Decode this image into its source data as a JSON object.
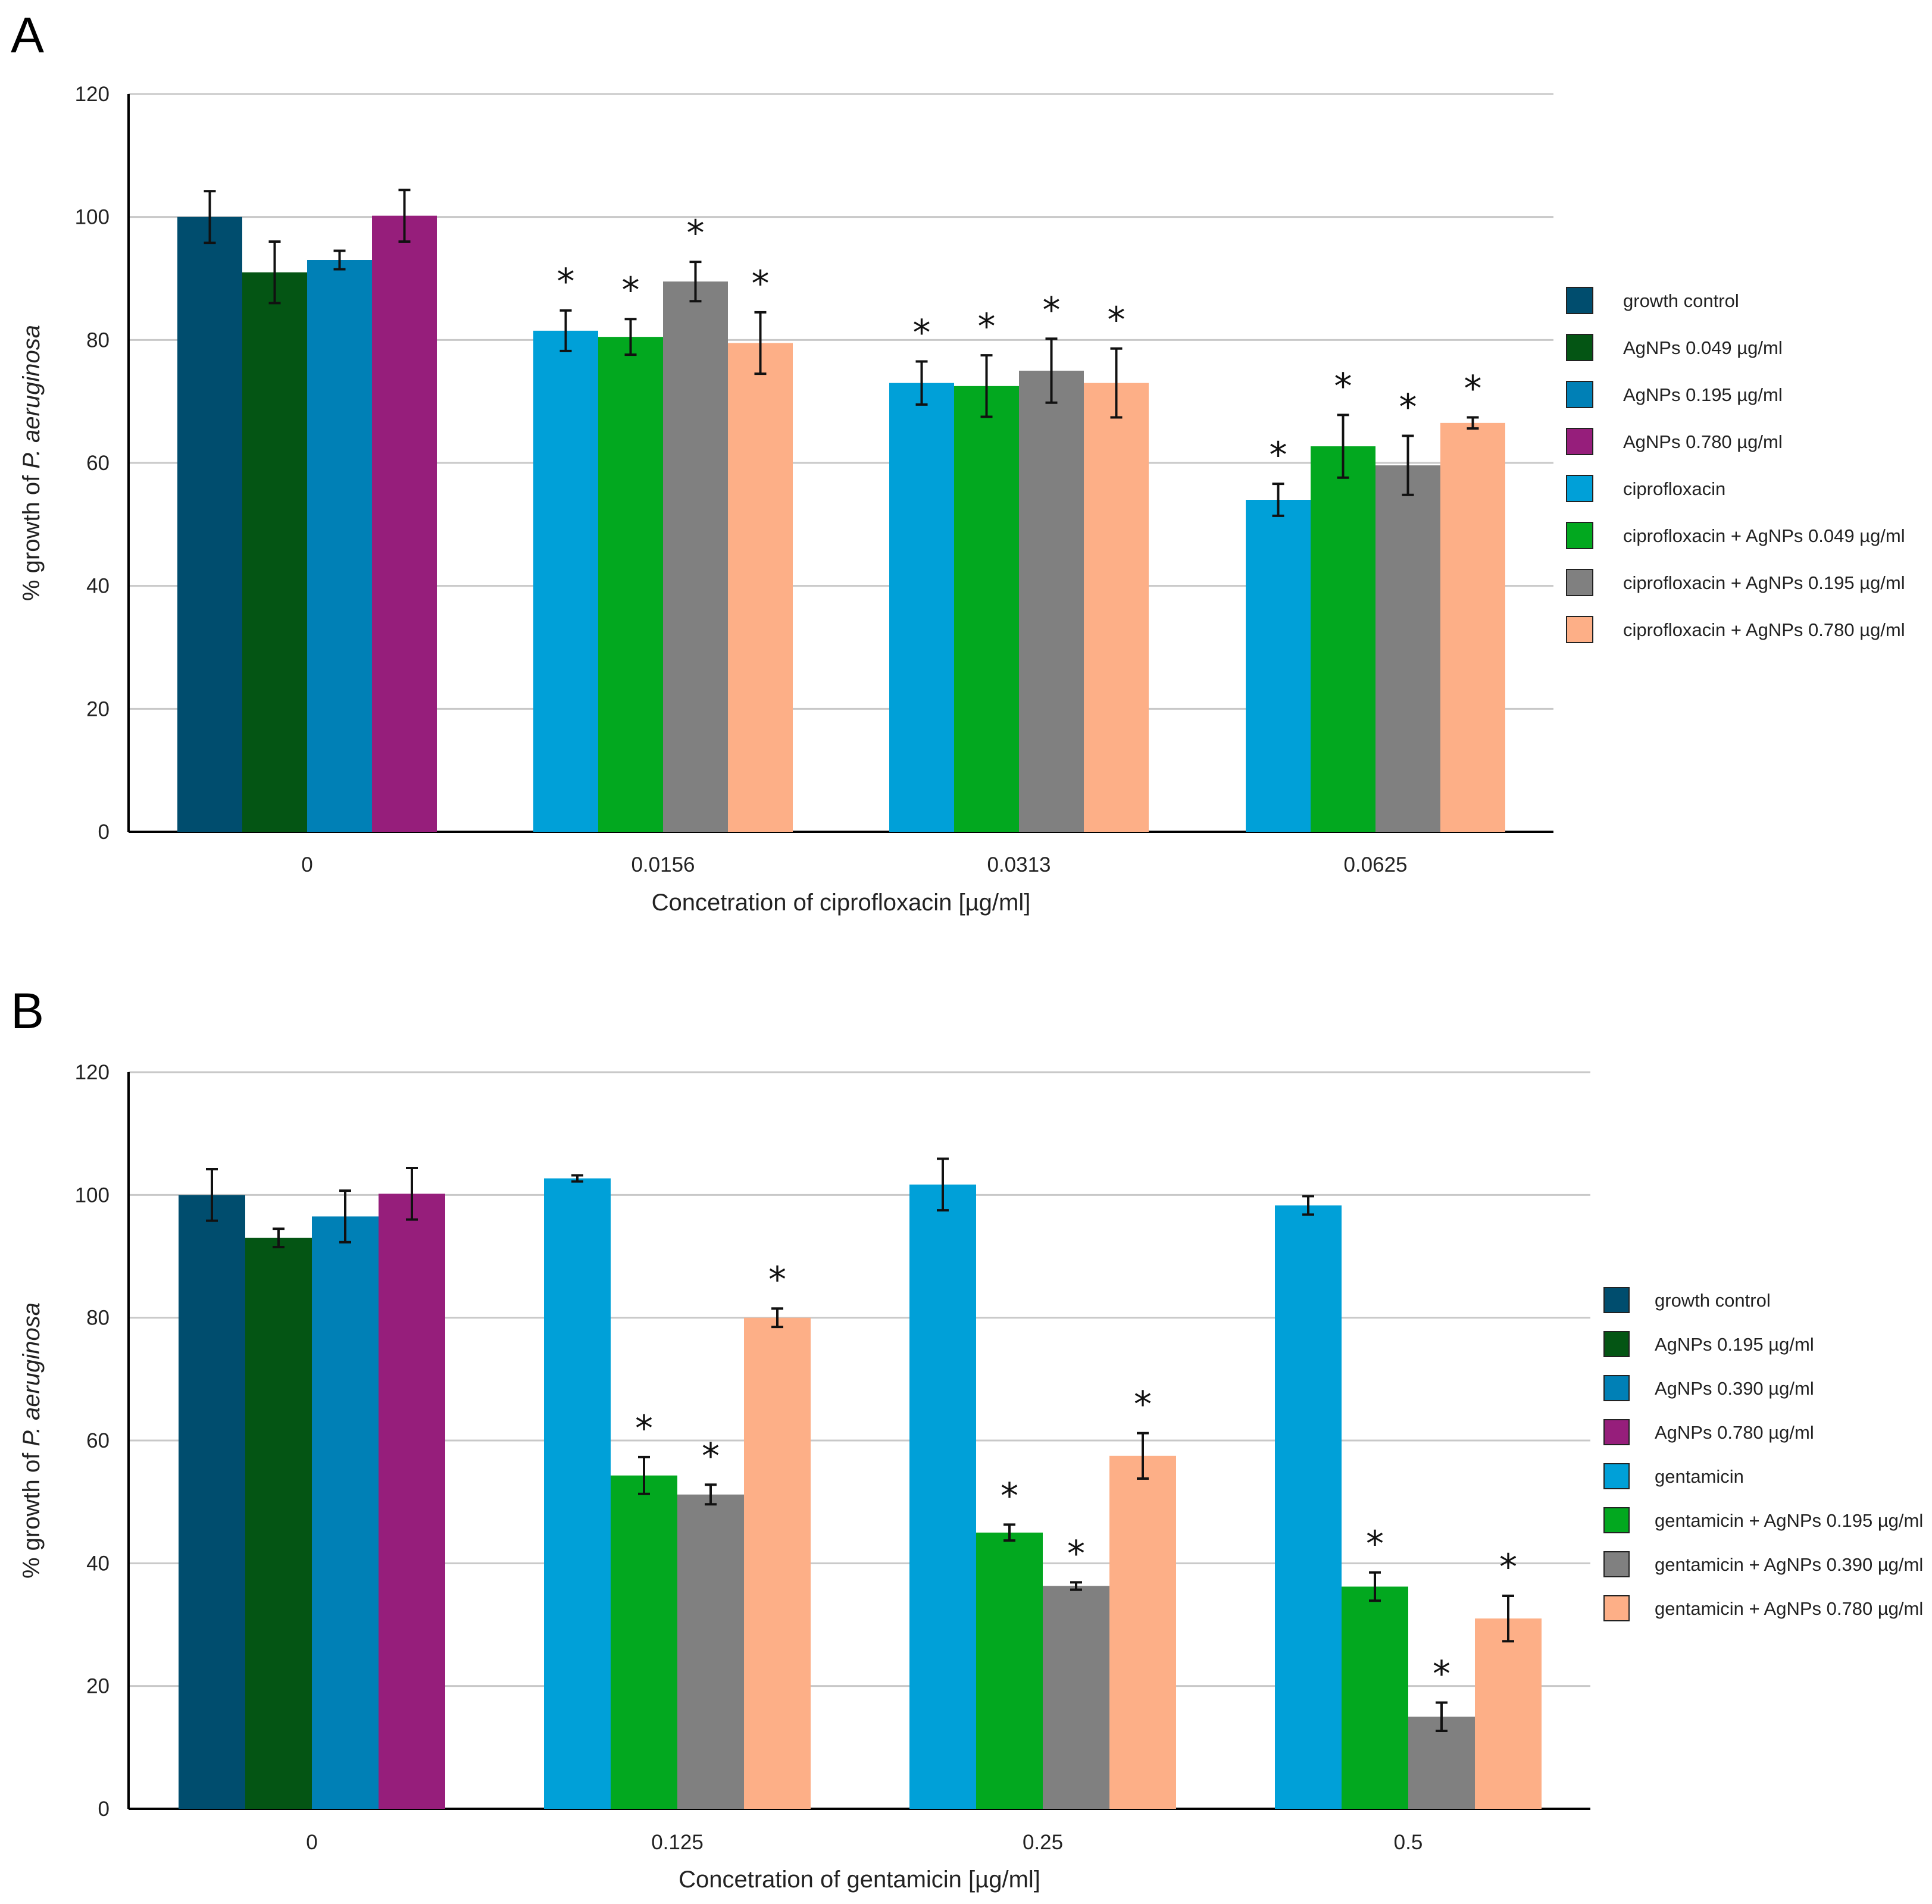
{
  "chart_data": [
    {
      "type": "bar",
      "panel": "A",
      "categories": [
        "0",
        "0.0156",
        "0.0313",
        "0.0625"
      ],
      "xlabel": "Concetration of ciprofloxacin [µg/ml]",
      "ylabel_prefix": "% growth of ",
      "ylabel_italic": "P. aeruginosa",
      "ylim": [
        0,
        120
      ],
      "yticks": [
        "0",
        "20",
        "40",
        "60",
        "80",
        "100",
        "120"
      ],
      "grid": true,
      "legend_position": "right",
      "star_symbol": "*",
      "groups": [
        {
          "category": "0",
          "bars": [
            {
              "series": 0,
              "value": 100,
              "error": 4.2,
              "star": false
            },
            {
              "series": 1,
              "value": 91,
              "error": 5,
              "star": false
            },
            {
              "series": 2,
              "value": 93,
              "error": 1.5,
              "star": false
            },
            {
              "series": 3,
              "value": 100.2,
              "error": 4.2,
              "star": false
            }
          ]
        },
        {
          "category": "0.0156",
          "bars": [
            {
              "series": 4,
              "value": 81.5,
              "error": 3.3,
              "star": true
            },
            {
              "series": 5,
              "value": 80.5,
              "error": 2.9,
              "star": true
            },
            {
              "series": 6,
              "value": 89.5,
              "error": 3.2,
              "star": true
            },
            {
              "series": 7,
              "value": 79.5,
              "error": 5,
              "star": true
            }
          ]
        },
        {
          "category": "0.0313",
          "bars": [
            {
              "series": 4,
              "value": 73,
              "error": 3.5,
              "star": true
            },
            {
              "series": 5,
              "value": 72.5,
              "error": 5,
              "star": true
            },
            {
              "series": 6,
              "value": 75,
              "error": 5.2,
              "star": true
            },
            {
              "series": 7,
              "value": 73,
              "error": 5.6,
              "star": true
            }
          ]
        },
        {
          "category": "0.0625",
          "bars": [
            {
              "series": 4,
              "value": 54,
              "error": 2.6,
              "star": true
            },
            {
              "series": 5,
              "value": 62.7,
              "error": 5.1,
              "star": true
            },
            {
              "series": 6,
              "value": 59.6,
              "error": 4.8,
              "star": true
            },
            {
              "series": 7,
              "value": 66.5,
              "error": 0.9,
              "star": true
            }
          ]
        }
      ],
      "series": [
        {
          "name": "growth control",
          "color": "#004d6e"
        },
        {
          "name": "AgNPs 0.049 µg/ml",
          "color": "#045514"
        },
        {
          "name": "AgNPs 0.195 µg/ml",
          "color": "#0080b6"
        },
        {
          "name": "AgNPs 0.780 µg/ml",
          "color": "#961e7b"
        },
        {
          "name": "ciprofloxacin",
          "color": "#00a0d8"
        },
        {
          "name": "ciprofloxacin + AgNPs 0.049 µg/ml",
          "color": "#02a81f"
        },
        {
          "name": "ciprofloxacin + AgNPs 0.195 µg/ml",
          "color": "#808080"
        },
        {
          "name": "ciprofloxacin + AgNPs 0.780 µg/ml",
          "color": "#fdaf87"
        }
      ]
    },
    {
      "type": "bar",
      "panel": "B",
      "categories": [
        "0",
        "0.125",
        "0.25",
        "0.5"
      ],
      "xlabel": "Concetration of gentamicin [µg/ml]",
      "ylabel_prefix": "% growth of ",
      "ylabel_italic": "P. aeruginosa",
      "ylim": [
        0,
        120
      ],
      "yticks": [
        "0",
        "20",
        "40",
        "60",
        "80",
        "100",
        "120"
      ],
      "grid": true,
      "legend_position": "right",
      "star_symbol": "*",
      "groups": [
        {
          "category": "0",
          "bars": [
            {
              "series": 0,
              "value": 100,
              "error": 4.2,
              "star": false
            },
            {
              "series": 1,
              "value": 93,
              "error": 1.5,
              "star": false
            },
            {
              "series": 2,
              "value": 96.5,
              "error": 4.2,
              "star": false
            },
            {
              "series": 3,
              "value": 100.2,
              "error": 4.2,
              "star": false
            }
          ]
        },
        {
          "category": "0.125",
          "bars": [
            {
              "series": 4,
              "value": 102.7,
              "error": 0.5,
              "star": false
            },
            {
              "series": 5,
              "value": 54.3,
              "error": 3,
              "star": true
            },
            {
              "series": 6,
              "value": 51.2,
              "error": 1.6,
              "star": true
            },
            {
              "series": 7,
              "value": 80,
              "error": 1.5,
              "star": true
            }
          ]
        },
        {
          "category": "0.25",
          "bars": [
            {
              "series": 4,
              "value": 101.7,
              "error": 4.2,
              "star": false
            },
            {
              "series": 5,
              "value": 45,
              "error": 1.3,
              "star": true
            },
            {
              "series": 6,
              "value": 36.3,
              "error": 0.6,
              "star": true
            },
            {
              "series": 7,
              "value": 57.5,
              "error": 3.7,
              "star": true
            }
          ]
        },
        {
          "category": "0.5",
          "bars": [
            {
              "series": 4,
              "value": 98.3,
              "error": 1.5,
              "star": false
            },
            {
              "series": 5,
              "value": 36.2,
              "error": 2.3,
              "star": true
            },
            {
              "series": 6,
              "value": 15,
              "error": 2.3,
              "star": true
            },
            {
              "series": 7,
              "value": 31,
              "error": 3.7,
              "star": true
            }
          ]
        }
      ],
      "series": [
        {
          "name": "growth control",
          "color": "#004d6e"
        },
        {
          "name": "AgNPs 0.195 µg/ml",
          "color": "#045514"
        },
        {
          "name": "AgNPs 0.390 µg/ml",
          "color": "#0080b6"
        },
        {
          "name": "AgNPs 0.780 µg/ml",
          "color": "#961e7b"
        },
        {
          "name": "gentamicin",
          "color": "#00a0d8"
        },
        {
          "name": "gentamicin + AgNPs 0.195 µg/ml",
          "color": "#02a81f"
        },
        {
          "name": "gentamicin + AgNPs 0.390 µg/ml",
          "color": "#808080"
        },
        {
          "name": "gentamicin + AgNPs 0.780 µg/ml",
          "color": "#fdaf87"
        }
      ]
    }
  ]
}
